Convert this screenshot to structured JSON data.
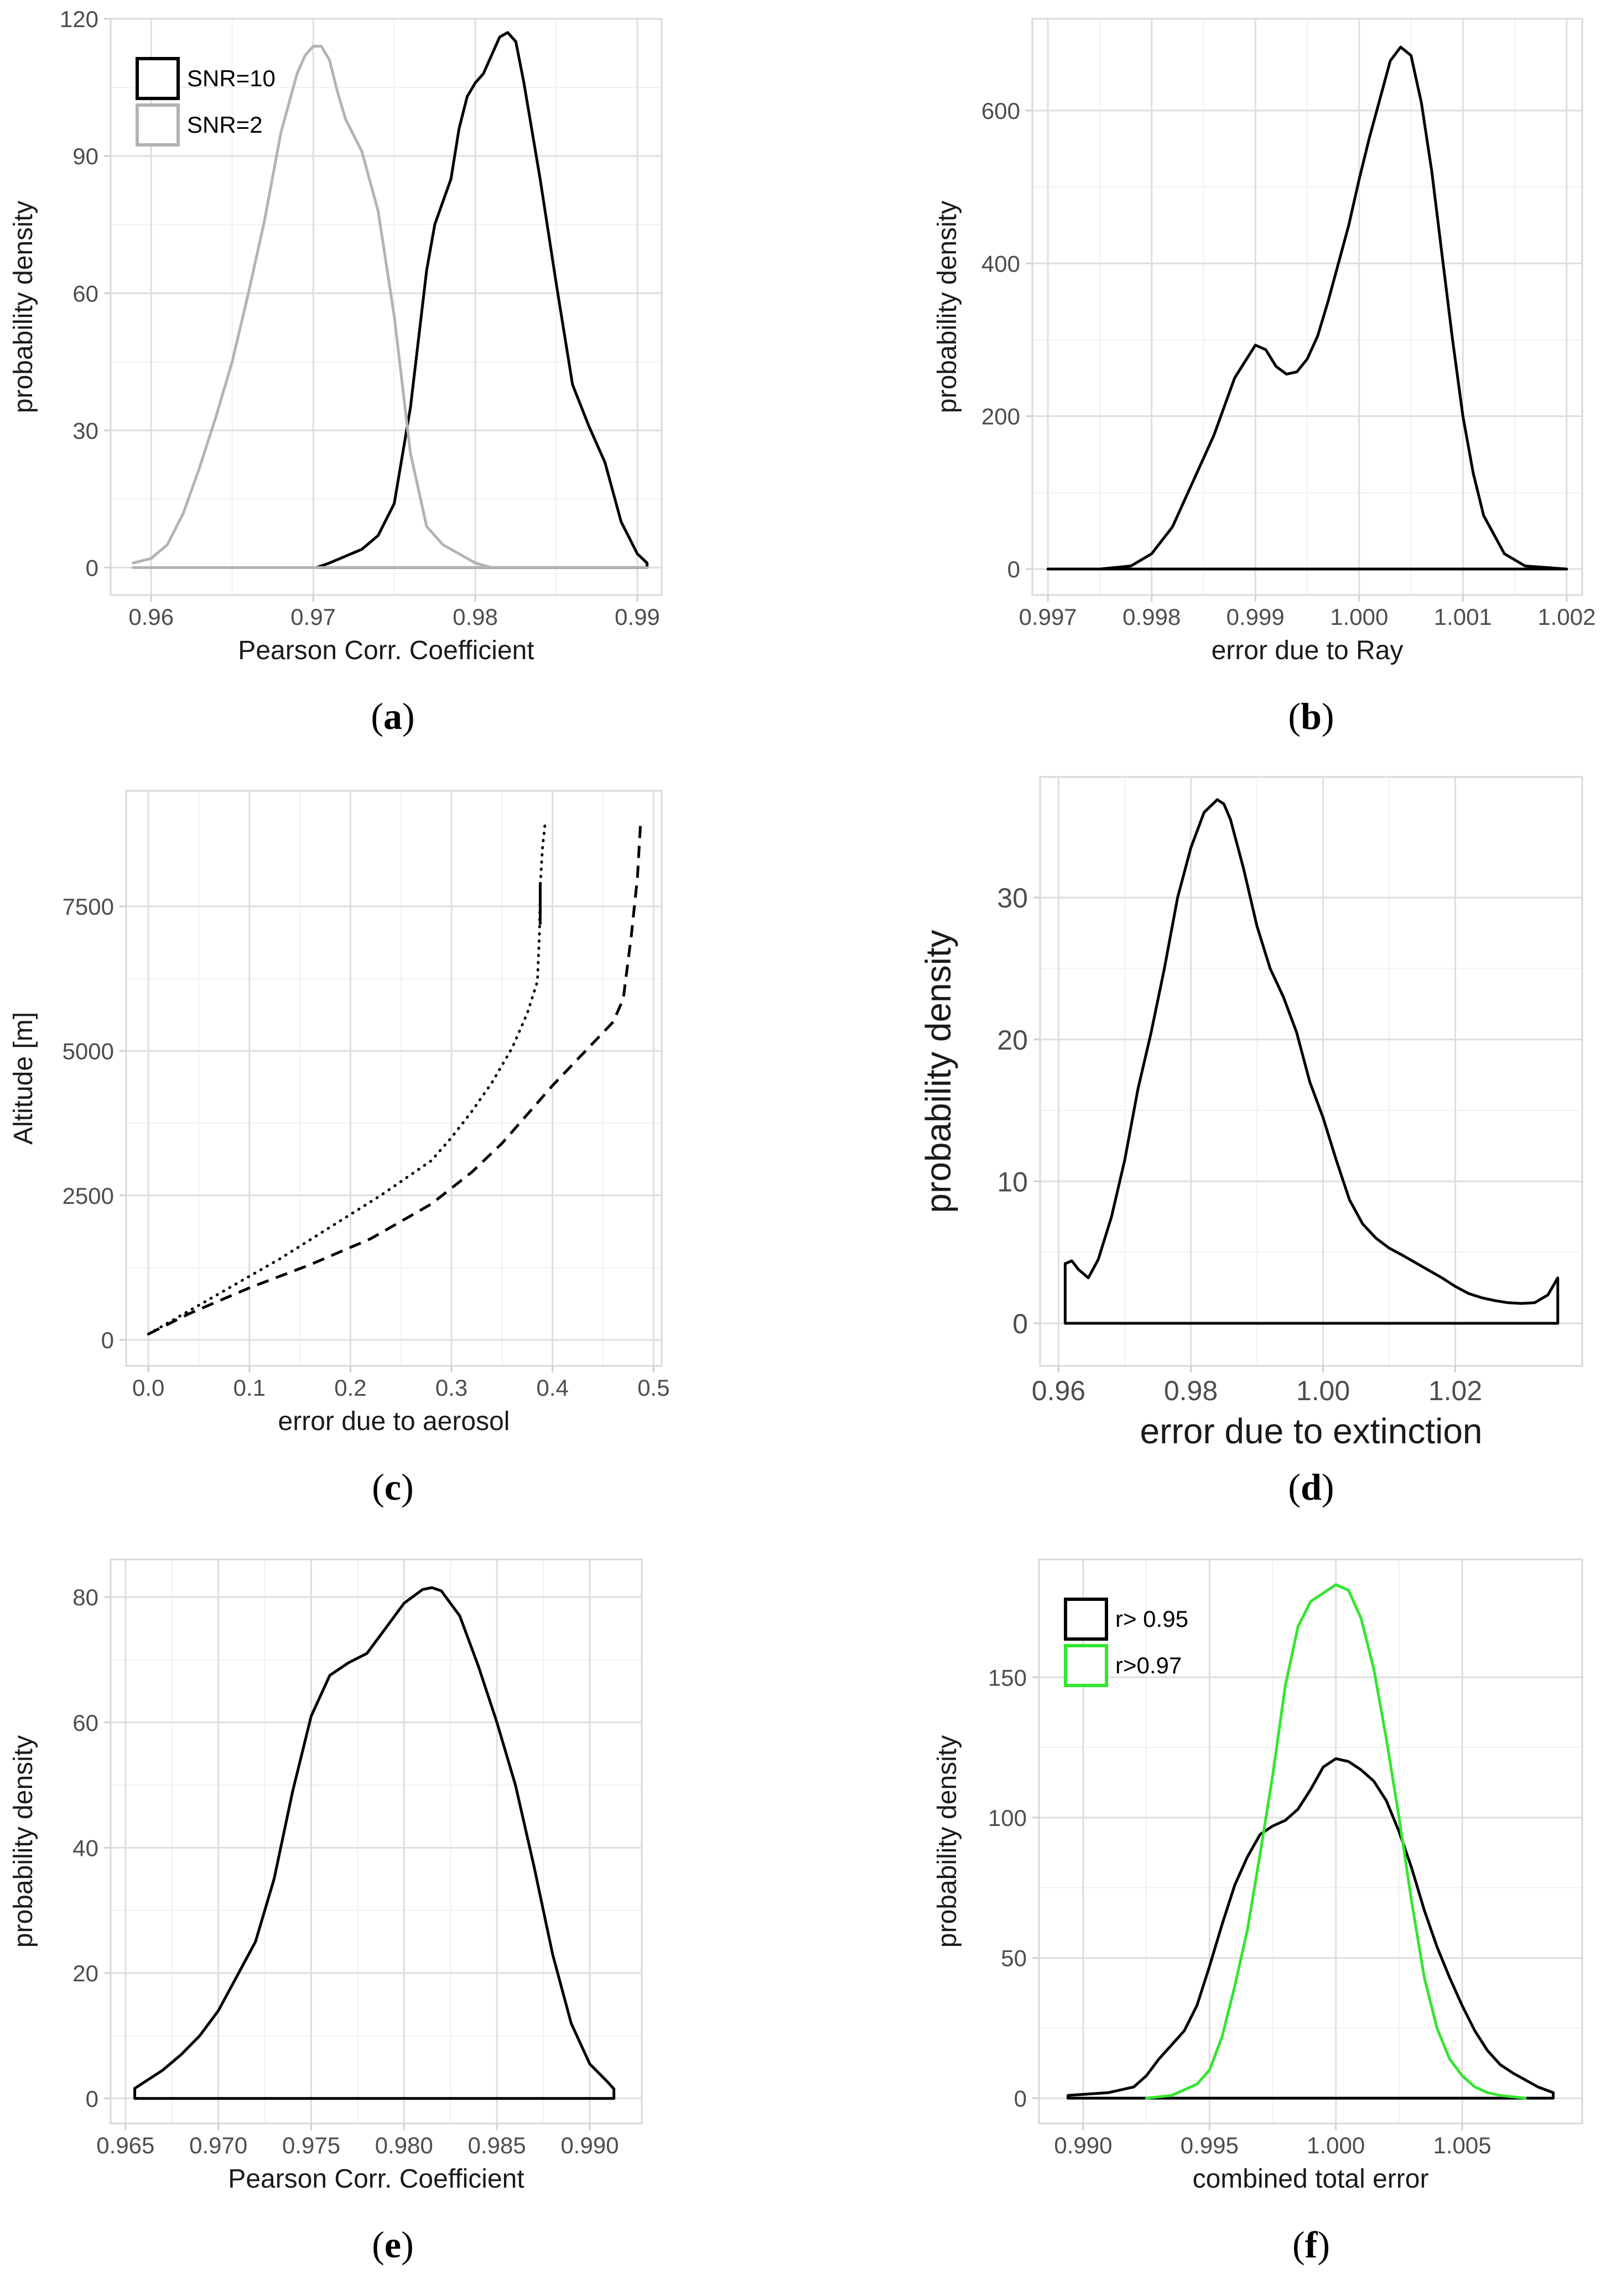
{
  "chart_data": [
    {
      "id": "a",
      "caption": {
        "letter": "a",
        "open": "(",
        "close": ")"
      },
      "type": "line",
      "xlabel": "Pearson Corr. Coefficient",
      "ylabel": "probability density",
      "xlim": [
        0.9575,
        0.9915
      ],
      "ylim": [
        -6,
        120
      ],
      "x_ticks": [
        0.96,
        0.97,
        0.98,
        0.99
      ],
      "x_tick_labels": [
        "0.96",
        "0.97",
        "0.98",
        "0.99"
      ],
      "y_ticks": [
        0,
        30,
        60,
        90,
        120
      ],
      "y_tick_labels": [
        "0",
        "30",
        "60",
        "90",
        "120"
      ],
      "legend": {
        "position": "top-left",
        "entries": [
          {
            "label": "SNR=10",
            "color": "#000000"
          },
          {
            "label": "SNR=2",
            "color": "#b3b3b3"
          }
        ]
      },
      "series": [
        {
          "name": "SNR=10",
          "color": "#000000",
          "dash": "solid",
          "x": [
            0.9702,
            0.971,
            0.972,
            0.973,
            0.974,
            0.975,
            0.976,
            0.977,
            0.9775,
            0.978,
            0.9785,
            0.979,
            0.9795,
            0.98,
            0.9805,
            0.981,
            0.9815,
            0.982,
            0.9825,
            0.983,
            0.984,
            0.985,
            0.986,
            0.987,
            0.988,
            0.989,
            0.99,
            0.9906,
            0.9906,
            0.9702
          ],
          "y": [
            0,
            1,
            2.5,
            4,
            7,
            14,
            35,
            65,
            75,
            80,
            85,
            96,
            103,
            106,
            108,
            112,
            116,
            117,
            115,
            106,
            85,
            62,
            40,
            31,
            23,
            10,
            3,
            1,
            0,
            0
          ]
        },
        {
          "name": "SNR=2",
          "color": "#b3b3b3",
          "dash": "solid",
          "x": [
            0.9589,
            0.96,
            0.961,
            0.962,
            0.963,
            0.964,
            0.965,
            0.966,
            0.967,
            0.968,
            0.969,
            0.9695,
            0.97,
            0.9705,
            0.971,
            0.9715,
            0.972,
            0.973,
            0.974,
            0.975,
            0.976,
            0.977,
            0.978,
            0.979,
            0.98,
            0.981,
            0.9906,
            0.9589
          ],
          "y": [
            1,
            2,
            5,
            12,
            22,
            33,
            45,
            60,
            76,
            95,
            108,
            112,
            114,
            114,
            111,
            104,
            98,
            91,
            78,
            55,
            25,
            9,
            5,
            3,
            1,
            0,
            0,
            0
          ]
        }
      ]
    },
    {
      "id": "b",
      "caption": {
        "letter": "b",
        "open": "(",
        "close": ")"
      },
      "type": "line",
      "xlabel": "error due to Ray",
      "ylabel": "probability density",
      "xlim": [
        0.99685,
        1.00215
      ],
      "ylim": [
        -34,
        720
      ],
      "x_ticks": [
        0.997,
        0.998,
        0.999,
        1.0,
        1.001,
        1.002
      ],
      "x_tick_labels": [
        "0.997",
        "0.998",
        "0.999",
        "1.000",
        "1.001",
        "1.002"
      ],
      "y_ticks": [
        0,
        200,
        400,
        600
      ],
      "y_tick_labels": [
        "0",
        "200",
        "400",
        "600"
      ],
      "series": [
        {
          "name": "density",
          "color": "#000000",
          "dash": "solid",
          "x": [
            0.997,
            0.9975,
            0.9978,
            0.998,
            0.9982,
            0.9984,
            0.9986,
            0.9988,
            0.999,
            0.9991,
            0.9992,
            0.9993,
            0.9994,
            0.9995,
            0.9996,
            0.9997,
            0.9998,
            0.9999,
            1.0,
            1.0001,
            1.0002,
            1.0003,
            1.0004,
            1.0005,
            1.0006,
            1.0007,
            1.0008,
            1.0009,
            1.001,
            1.0011,
            1.0012,
            1.0014,
            1.0016,
            1.002,
            1.002,
            0.997
          ],
          "y": [
            0,
            0,
            4,
            20,
            55,
            115,
            175,
            250,
            293,
            287,
            265,
            255,
            258,
            275,
            305,
            350,
            400,
            450,
            510,
            565,
            615,
            665,
            683,
            672,
            610,
            520,
            410,
            300,
            200,
            125,
            70,
            20,
            4,
            0,
            0,
            0
          ]
        }
      ]
    },
    {
      "id": "c",
      "caption": {
        "letter": "c",
        "open": "(",
        "close": ")"
      },
      "type": "line",
      "xlabel": "error due to aerosol",
      "ylabel": "Altitude [m]",
      "xlim": [
        -0.022,
        0.508
      ],
      "ylim": [
        -450,
        9500
      ],
      "x_ticks": [
        0.0,
        0.1,
        0.2,
        0.3,
        0.4,
        0.5
      ],
      "x_tick_labels": [
        "0.0",
        "0.1",
        "0.2",
        "0.3",
        "0.4",
        "0.5"
      ],
      "y_ticks": [
        0,
        2500,
        5000,
        7500
      ],
      "y_tick_labels": [
        "0",
        "2500",
        "5000",
        "7500"
      ],
      "series": [
        {
          "name": "dotted",
          "color": "#000000",
          "dash": "dotted",
          "x": [
            0.0,
            0.03,
            0.08,
            0.13,
            0.18,
            0.23,
            0.28,
            0.3,
            0.32,
            0.34,
            0.36,
            0.375,
            0.385,
            0.387,
            0.388,
            0.39,
            0.393
          ],
          "y": [
            100,
            400,
            900,
            1400,
            1950,
            2500,
            3100,
            3500,
            3950,
            4450,
            5050,
            5650,
            6200,
            7000,
            7900,
            8500,
            9000
          ]
        },
        {
          "name": "dashed",
          "color": "#000000",
          "dash": "dashed",
          "x": [
            0.0,
            0.04,
            0.1,
            0.16,
            0.22,
            0.28,
            0.32,
            0.35,
            0.36,
            0.38,
            0.4,
            0.43,
            0.46,
            0.47,
            0.478,
            0.484,
            0.487
          ],
          "y": [
            100,
            450,
            900,
            1300,
            1750,
            2350,
            2900,
            3400,
            3600,
            4000,
            4400,
            4950,
            5500,
            5900,
            7000,
            8000,
            8900
          ]
        },
        {
          "name": "solid",
          "color": "#000000",
          "dash": "solid",
          "x": [
            0.3878,
            0.3878
          ],
          "y": [
            7200,
            7900
          ]
        }
      ]
    },
    {
      "id": "d",
      "caption": {
        "letter": "d",
        "open": "(",
        "close": ")"
      },
      "type": "line",
      "xlabel": "error due to extinction",
      "ylabel": "probability density",
      "xlim": [
        0.9572,
        1.0392
      ],
      "ylim": [
        -3,
        38.5
      ],
      "x_ticks": [
        0.96,
        0.98,
        1.0,
        1.02
      ],
      "x_tick_labels": [
        "0.96",
        "0.98",
        "1.00",
        "1.02"
      ],
      "y_ticks": [
        0,
        10,
        20,
        30
      ],
      "y_tick_labels": [
        "0",
        "10",
        "20",
        "30"
      ],
      "series": [
        {
          "name": "density",
          "color": "#000000",
          "dash": "solid",
          "x": [
            0.961,
            0.961,
            0.962,
            0.963,
            0.9645,
            0.966,
            0.968,
            0.97,
            0.972,
            0.974,
            0.976,
            0.978,
            0.98,
            0.982,
            0.984,
            0.985,
            0.986,
            0.988,
            0.99,
            0.992,
            0.994,
            0.996,
            0.998,
            1.0,
            1.002,
            1.004,
            1.006,
            1.008,
            1.01,
            1.012,
            1.015,
            1.018,
            1.02,
            1.022,
            1.024,
            1.026,
            1.028,
            1.03,
            1.032,
            1.034,
            1.035,
            1.0355,
            1.0355,
            0.961
          ],
          "y": [
            0,
            4.2,
            4.4,
            3.8,
            3.2,
            4.5,
            7.5,
            11.5,
            16.5,
            20.5,
            25,
            30,
            33.5,
            36,
            36.9,
            36.6,
            35.5,
            32,
            28,
            25,
            23,
            20.5,
            17,
            14.5,
            11.5,
            8.7,
            7,
            6,
            5.3,
            4.8,
            4,
            3.2,
            2.6,
            2.1,
            1.8,
            1.6,
            1.45,
            1.4,
            1.45,
            2,
            2.8,
            3.2,
            0,
            0
          ]
        }
      ]
    },
    {
      "id": "e",
      "caption": {
        "letter": "e",
        "open": "(",
        "close": ")"
      },
      "type": "line",
      "xlabel": "Pearson Corr. Coefficient",
      "ylabel": "probability density",
      "xlim": [
        0.9642,
        0.9928
      ],
      "ylim": [
        -4,
        86
      ],
      "x_ticks": [
        0.965,
        0.97,
        0.975,
        0.98,
        0.985,
        0.99
      ],
      "x_tick_labels": [
        "0.965",
        "0.970",
        "0.975",
        "0.980",
        "0.985",
        "0.990"
      ],
      "y_ticks": [
        0,
        20,
        40,
        60,
        80
      ],
      "y_tick_labels": [
        "0",
        "20",
        "40",
        "60",
        "80"
      ],
      "series": [
        {
          "name": "density",
          "color": "#000000",
          "dash": "solid",
          "x": [
            0.9655,
            0.9655,
            0.967,
            0.968,
            0.969,
            0.97,
            0.971,
            0.972,
            0.973,
            0.974,
            0.975,
            0.976,
            0.977,
            0.978,
            0.979,
            0.98,
            0.981,
            0.9815,
            0.982,
            0.983,
            0.984,
            0.985,
            0.986,
            0.987,
            0.988,
            0.989,
            0.99,
            0.991,
            0.9913,
            0.9913,
            0.9655
          ],
          "y": [
            0,
            1.6,
            4.5,
            7,
            10,
            14,
            19.5,
            25,
            35,
            49,
            61,
            67.5,
            69.5,
            71,
            75,
            79,
            81.2,
            81.5,
            81,
            77,
            69,
            60,
            50,
            37,
            23,
            12,
            5.5,
            2.5,
            1.5,
            0,
            0
          ]
        }
      ]
    },
    {
      "id": "f",
      "caption": {
        "letter": "f",
        "open": "(",
        "close": ")"
      },
      "type": "line",
      "xlabel": "combined total error",
      "ylabel": "probability density",
      "xlim": [
        0.98825,
        1.00975
      ],
      "ylim": [
        -9,
        192
      ],
      "x_ticks": [
        0.99,
        0.995,
        1.0,
        1.005
      ],
      "x_tick_labels": [
        "0.990",
        "0.995",
        "1.000",
        "1.005"
      ],
      "y_ticks": [
        0,
        50,
        100,
        150
      ],
      "y_tick_labels": [
        "0",
        "50",
        "100",
        "150"
      ],
      "legend": {
        "position": "top-left",
        "entries": [
          {
            "label": "r> 0.95",
            "color": "#000000"
          },
          {
            "label": "r>0.97",
            "color": "#33e62e"
          }
        ]
      },
      "series": [
        {
          "name": "r> 0.95",
          "color": "#000000",
          "dash": "solid",
          "x": [
            0.9894,
            0.9894,
            0.991,
            0.992,
            0.9925,
            0.993,
            0.9935,
            0.994,
            0.9945,
            0.995,
            0.9955,
            0.996,
            0.9965,
            0.997,
            0.9975,
            0.998,
            0.9985,
            0.999,
            0.9995,
            1.0,
            1.0005,
            1.001,
            1.0015,
            1.002,
            1.0025,
            1.003,
            1.0035,
            1.004,
            1.0045,
            1.005,
            1.0055,
            1.006,
            1.0065,
            1.007,
            1.0075,
            1.008,
            1.0086,
            1.0086,
            0.9894
          ],
          "y": [
            0,
            1,
            2,
            4,
            8,
            14,
            19,
            24,
            33,
            47,
            62,
            76,
            86,
            94,
            97,
            99,
            103,
            110,
            118,
            121,
            120,
            117,
            113,
            106,
            95,
            82,
            67,
            54,
            43,
            33,
            24,
            17,
            12,
            9,
            6.5,
            4,
            2,
            0,
            0
          ]
        },
        {
          "name": "r>0.97",
          "color": "#33e62e",
          "dash": "solid",
          "x": [
            0.9925,
            0.9935,
            0.994,
            0.9945,
            0.995,
            0.9955,
            0.996,
            0.9965,
            0.997,
            0.9975,
            0.998,
            0.9985,
            0.999,
            0.9995,
            1.0,
            1.0005,
            1.001,
            1.0015,
            1.002,
            1.0025,
            1.003,
            1.0035,
            1.004,
            1.0045,
            1.005,
            1.0055,
            1.006,
            1.0065,
            1.007,
            1.0075
          ],
          "y": [
            0,
            1,
            3,
            5,
            10,
            22,
            40,
            60,
            87,
            115,
            147,
            168,
            177,
            180,
            183,
            181,
            171,
            153,
            128,
            100,
            70,
            43,
            25,
            14,
            8,
            4,
            2,
            1,
            0.5,
            0
          ]
        }
      ]
    }
  ]
}
